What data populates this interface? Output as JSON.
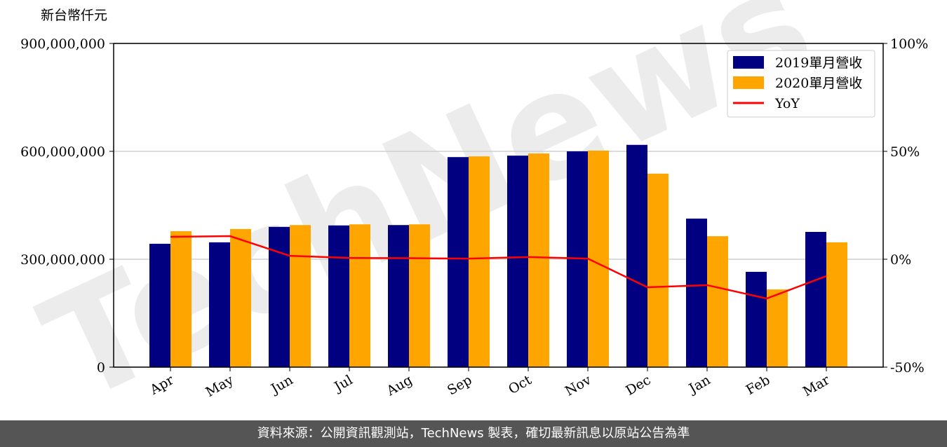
{
  "chart_data": {
    "type": "bar",
    "ylabel": "新台幣仟元",
    "watermark": "TechNews",
    "categories": [
      "Apr",
      "May",
      "Jun",
      "Jul",
      "Aug",
      "Sep",
      "Oct",
      "Nov",
      "Dec",
      "Jan",
      "Feb",
      "Mar"
    ],
    "series": [
      {
        "name": "2019單月營收",
        "color": "#000080",
        "values": [
          343000000,
          347000000,
          390000000,
          394000000,
          395000000,
          584000000,
          588000000,
          600000000,
          618000000,
          413000000,
          265000000,
          376000000
        ]
      },
      {
        "name": "2020單月營收",
        "color": "#ffa500",
        "values": [
          378000000,
          384000000,
          395000000,
          397000000,
          397000000,
          586000000,
          594000000,
          602000000,
          538000000,
          364000000,
          216000000,
          347000000
        ]
      },
      {
        "name": "YoY",
        "type": "line",
        "axis": "y2",
        "color": "#ff0000",
        "values": [
          10.4,
          10.7,
          1.6,
          0.6,
          0.5,
          0.3,
          1,
          0.3,
          -13,
          -12,
          -18.2,
          -7.8
        ]
      }
    ],
    "ylim": [
      0,
      900000000
    ],
    "yticks": [
      {
        "value": 0,
        "label": "0"
      },
      {
        "value": 300000000,
        "label": "300,000,000"
      },
      {
        "value": 600000000,
        "label": "600,000,000"
      },
      {
        "value": 900000000,
        "label": "900,000,000"
      }
    ],
    "y2lim": [
      -50,
      100
    ],
    "y2ticks": [
      {
        "value": -50,
        "label": "-50%"
      },
      {
        "value": 0,
        "label": "0%"
      },
      {
        "value": 50,
        "label": "50%"
      },
      {
        "value": 100,
        "label": "100%"
      }
    ],
    "grid": true,
    "legend": "upper right"
  },
  "footer": "資料來源：公開資訊觀測站，TechNews 製表，確切最新訊息以原站公告為準"
}
